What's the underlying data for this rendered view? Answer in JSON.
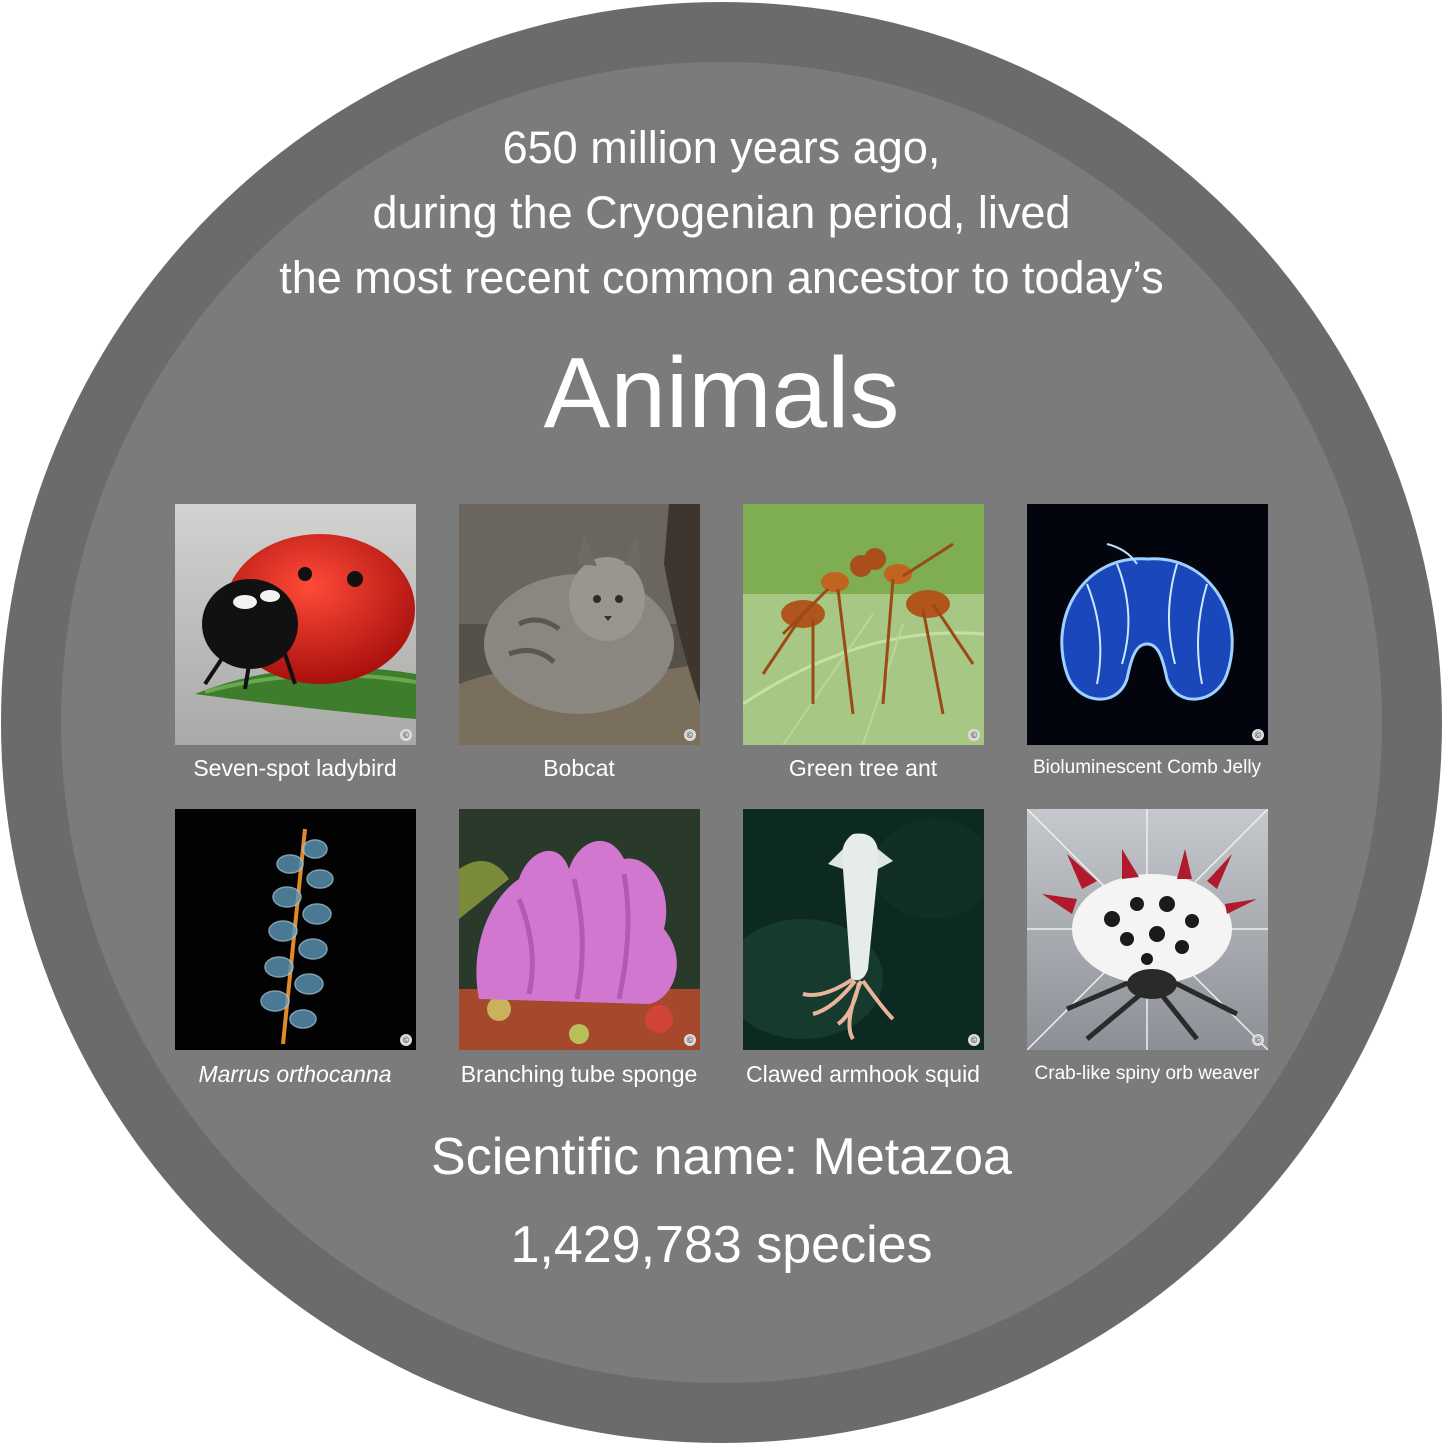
{
  "intro": {
    "line1": "650 million years ago,",
    "line2": "during the Cryogenian period, lived",
    "line3": "the most recent common ancestor to today’s"
  },
  "title": "Animals",
  "tiles": [
    {
      "caption": "Seven-spot ladybird",
      "image_icon": "ladybird-photo"
    },
    {
      "caption": "Bobcat",
      "image_icon": "bobcat-photo"
    },
    {
      "caption": "Green tree ant",
      "image_icon": "ant-photo"
    },
    {
      "caption": "Bioluminescent Comb Jelly",
      "image_icon": "comb-jelly-photo"
    },
    {
      "caption": "Marrus orthocanna",
      "image_icon": "siphonophore-photo"
    },
    {
      "caption": "Branching tube sponge",
      "image_icon": "sponge-photo"
    },
    {
      "caption": "Clawed armhook squid",
      "image_icon": "squid-photo"
    },
    {
      "caption": "Crab-like spiny orb weaver",
      "image_icon": "spider-photo"
    }
  ],
  "copyright_mark": "©",
  "scientific_name": "Scientific name: Metazoa",
  "species_count": "1,429,783 species",
  "colors": {
    "outer_ring": "#6b6b6b",
    "inner_disc": "#7b7b7b",
    "text": "#ffffff"
  }
}
